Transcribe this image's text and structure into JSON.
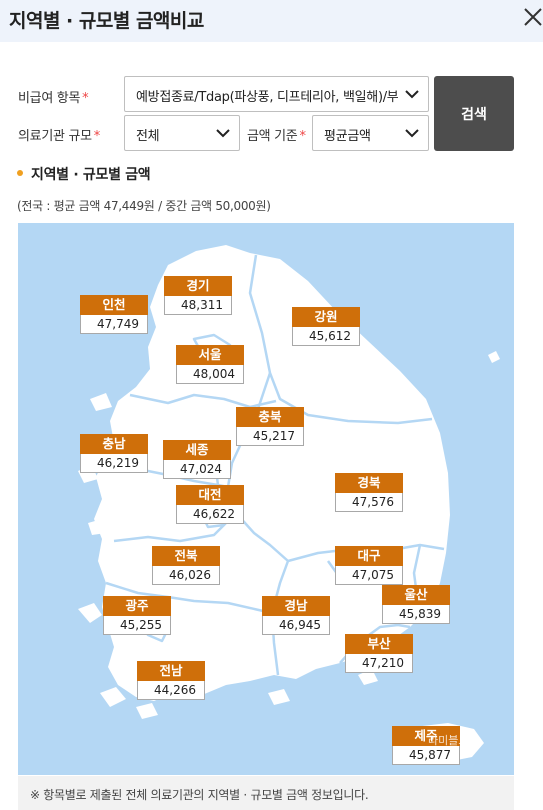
{
  "header": {
    "title": "지역별 · 규모별 금액비교"
  },
  "filters": {
    "item_label": "비급여 항목",
    "item_value": "예방접종료/Tdap(파상풍, 디프테리아, 백일해)/부스터",
    "size_label": "의료기관 규모",
    "size_value": "전체",
    "basis_label": "금액 기준",
    "basis_value": "평균금액",
    "required_mark": "*",
    "search_label": "검색"
  },
  "section": {
    "title": "지역별 · 규모별 금액",
    "summary": "(전국 : 평균 금액 47,449원 / 중간 금액 50,000원)"
  },
  "map": {
    "land_color": "#ffffff",
    "sea_color": "#b4d7f4",
    "badge_color": "#cf6f0a",
    "regions": [
      {
        "name": "경기",
        "amount": "48,311"
      },
      {
        "name": "인천",
        "amount": "47,749"
      },
      {
        "name": "강원",
        "amount": "45,612"
      },
      {
        "name": "서울",
        "amount": "48,004"
      },
      {
        "name": "충북",
        "amount": "45,217"
      },
      {
        "name": "충남",
        "amount": "46,219"
      },
      {
        "name": "세종",
        "amount": "47,024"
      },
      {
        "name": "대전",
        "amount": "46,622"
      },
      {
        "name": "경북",
        "amount": "47,576"
      },
      {
        "name": "전북",
        "amount": "46,026"
      },
      {
        "name": "대구",
        "amount": "47,075"
      },
      {
        "name": "광주",
        "amount": "45,255"
      },
      {
        "name": "경남",
        "amount": "46,945"
      },
      {
        "name": "울산",
        "amount": "45,839"
      },
      {
        "name": "부산",
        "amount": "47,210"
      },
      {
        "name": "전남",
        "amount": "44,266"
      },
      {
        "name": "제주",
        "amount": "45,877"
      }
    ],
    "watermark": "라미블로그"
  },
  "footer": {
    "note": "※ 항목별로 제출된 전체 의료기관의 지역별 · 규모별 금액 정보입니다."
  }
}
